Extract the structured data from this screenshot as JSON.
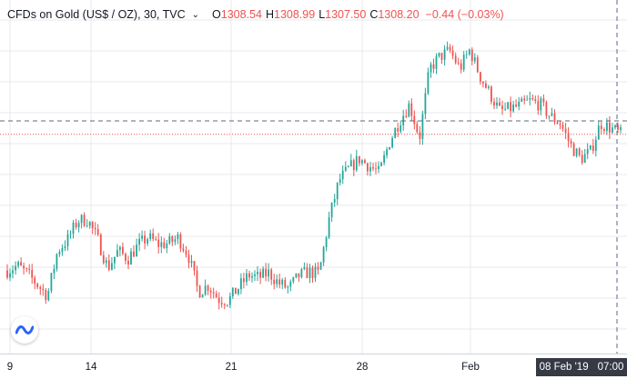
{
  "legend": {
    "symbol": "CFDs on Gold (US$ / OZ), 30, TVC",
    "o_label": "O",
    "o_value": "1308.54",
    "h_label": "H",
    "h_value": "1308.99",
    "l_label": "L",
    "l_value": "1307.50",
    "c_label": "C",
    "c_value": "1308.20",
    "change": "−0.44 (−0.03%)"
  },
  "chart_data": {
    "type": "line",
    "style": "candlestick-ohlc",
    "x_axis": {
      "tick_labels": [
        "9",
        "14",
        "21",
        "28",
        "Feb"
      ],
      "crosshair_label_date": "08 Feb '19",
      "crosshair_label_time": "07:00"
    },
    "y_axis": {
      "visible": false
    },
    "grid": true,
    "last_close": 1308.2,
    "series": [
      {
        "values": [
          1279.5,
          1280.5,
          1278.8,
          1276.5,
          1274.2,
          1283.6,
          1286.0,
          1290.0,
          1290.2,
          1286.0,
          1280.0,
          1283.6,
          1282.0,
          1284.8,
          1286.5,
          1285.0,
          1285.2,
          1286.4,
          1282.8,
          1275.0,
          1276.4,
          1273.5,
          1273.2,
          1275.9,
          1278.5,
          1278.0,
          1279.0,
          1276.8,
          1275.7,
          1278.4,
          1279.2,
          1278.8,
          1290.3,
          1298.5,
          1301.0,
          1303.0,
          1301.5,
          1300.0,
          1306.5,
          1311.0,
          1314.5,
          1307.5,
          1322.0,
          1324.5,
          1325.8,
          1322.0,
          1326.0,
          1320.5,
          1316.7,
          1313.0,
          1313.6,
          1314.2,
          1315.2,
          1314.5,
          1312.0,
          1310.5,
          1306.0,
          1303.0,
          1304.5,
          1310.5,
          1309.5,
          1308.2
        ]
      }
    ]
  },
  "colors": {
    "up": "#26a69a",
    "down": "#ef5350",
    "grid": "#e8e9ec",
    "crosshair": "#5f6780",
    "last_price_line": "#ef5350",
    "text": "#131722",
    "badge": "#2962ff"
  },
  "icons": {
    "badge": "tradingview-logo-icon",
    "dropdown": "chevron-down-icon"
  }
}
